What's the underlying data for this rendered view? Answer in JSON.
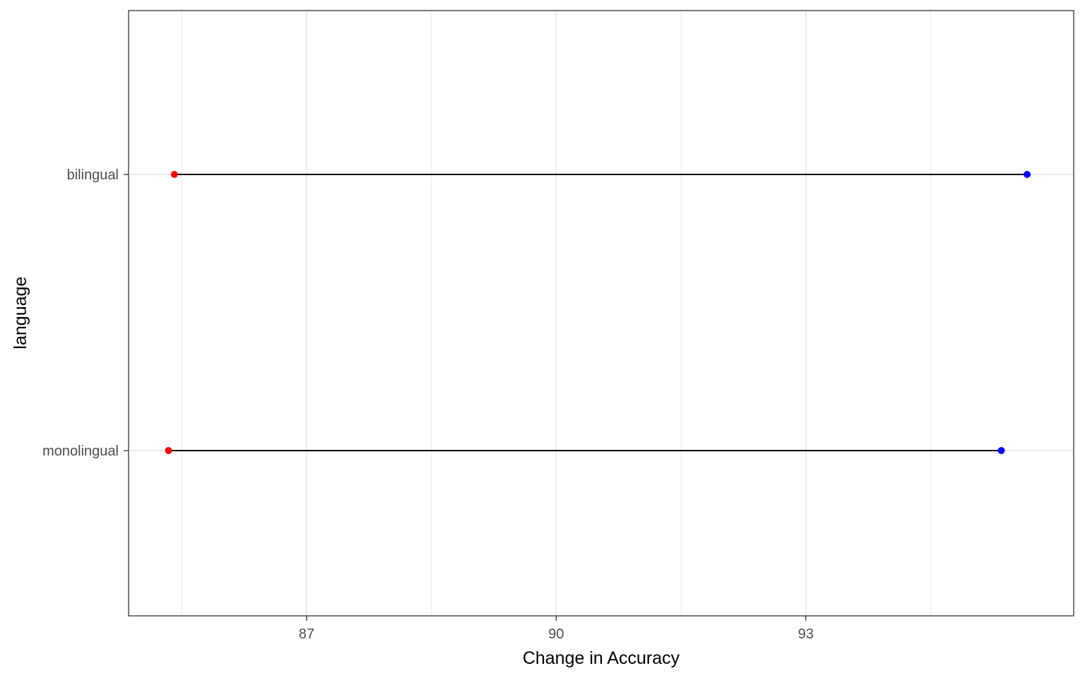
{
  "chart_data": {
    "type": "dumbbell",
    "title": "",
    "xlabel": "Change in Accuracy",
    "ylabel": "language",
    "xlim": [
      84.86,
      96.22
    ],
    "x_ticks": [
      87,
      90,
      93
    ],
    "x_minor_ticks": [
      85.5,
      88.5,
      91.5,
      94.5
    ],
    "categories": [
      "bilingual",
      "monolingual"
    ],
    "segments": [
      {
        "category": "bilingual",
        "start": 85.41,
        "end": 95.66
      },
      {
        "category": "monolingual",
        "start": 85.34,
        "end": 95.35
      }
    ],
    "start_color": "#ff0000",
    "end_color": "#0000ff",
    "segment_color": "#000000",
    "grid": true,
    "legend": "none"
  }
}
